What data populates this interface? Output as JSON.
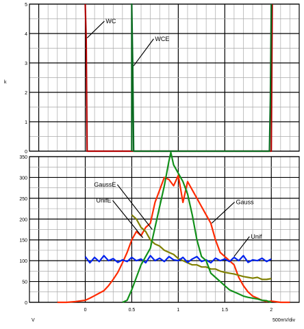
{
  "colors": {
    "Gauss": "#ff2a00",
    "GaussE": "#808000",
    "Unif": "#0022ee",
    "UnifE": "#12901a",
    "WC": "#b00000",
    "WCE": "#0a6a20",
    "grid_major": "#000000",
    "grid_minor": "#a8a8a8"
  },
  "chart_data": [
    {
      "type": "line",
      "title": "",
      "ylabel": "k",
      "xlim": [
        -0.6,
        2.3
      ],
      "ylim": [
        0,
        5
      ],
      "yticks": [
        "0",
        "1",
        "2",
        "3",
        "4",
        "5"
      ],
      "grid": true,
      "series": [
        {
          "name": "WC",
          "x": [
            0.0,
            0.01,
            0.02,
            0.03,
            2.0,
            2.01
          ],
          "values": [
            5.0,
            3.8,
            0.0,
            0.0,
            0.0,
            5.0
          ]
        },
        {
          "name": "WCE",
          "x": [
            0.5,
            0.5,
            0.51,
            0.52,
            1.98,
            1.99,
            2.0
          ],
          "values": [
            0.0,
            5.0,
            3.0,
            0.0,
            0.0,
            1.8,
            5.0
          ]
        }
      ],
      "annotations": [
        {
          "text": "WC",
          "series": "WC"
        },
        {
          "text": "WCE",
          "series": "WCE"
        }
      ]
    },
    {
      "type": "line",
      "title": "",
      "xlabel": "V",
      "scale_label": "500mV/div",
      "xlim": [
        -0.6,
        2.3
      ],
      "ylim": [
        0,
        350
      ],
      "xticks": [
        "0",
        "0.5",
        "1",
        "1.5",
        "2"
      ],
      "yticks": [
        "0",
        "50",
        "100",
        "150",
        "200",
        "250",
        "300",
        "350"
      ],
      "grid": true,
      "series": [
        {
          "name": "Gauss",
          "x": [
            -0.3,
            -0.2,
            -0.1,
            0.0,
            0.05,
            0.1,
            0.15,
            0.2,
            0.25,
            0.3,
            0.35,
            0.4,
            0.45,
            0.5,
            0.55,
            0.6,
            0.65,
            0.7,
            0.75,
            0.8,
            0.85,
            0.9,
            0.95,
            1.0,
            1.05,
            1.1,
            1.15,
            1.2,
            1.25,
            1.3,
            1.35,
            1.4,
            1.45,
            1.5,
            1.55,
            1.6,
            1.65,
            1.7,
            1.75,
            1.8,
            1.85,
            1.9,
            1.95,
            2.0,
            2.1,
            2.2
          ],
          "values": [
            0,
            0,
            2,
            5,
            10,
            16,
            22,
            28,
            40,
            55,
            72,
            95,
            120,
            150,
            170,
            160,
            180,
            190,
            240,
            270,
            300,
            295,
            280,
            305,
            240,
            290,
            270,
            250,
            230,
            210,
            190,
            150,
            120,
            110,
            100,
            90,
            60,
            40,
            25,
            15,
            10,
            5,
            2,
            3,
            0,
            0
          ]
        },
        {
          "name": "GaussE",
          "x": [
            0.5,
            0.55,
            0.6,
            0.65,
            0.7,
            0.75,
            0.8,
            0.85,
            0.9,
            0.95,
            1.0,
            1.05,
            1.1,
            1.15,
            1.2,
            1.25,
            1.3,
            1.35,
            1.4,
            1.45,
            1.5,
            1.55,
            1.6,
            1.65,
            1.7,
            1.75,
            1.8,
            1.85,
            1.9,
            1.95,
            2.0
          ],
          "values": [
            210,
            200,
            180,
            170,
            150,
            140,
            135,
            125,
            120,
            115,
            105,
            100,
            95,
            90,
            90,
            85,
            85,
            80,
            80,
            75,
            72,
            70,
            68,
            65,
            62,
            60,
            58,
            60,
            55,
            55,
            57
          ]
        },
        {
          "name": "Unif",
          "x": [
            0.0,
            0.05,
            0.1,
            0.15,
            0.2,
            0.25,
            0.3,
            0.35,
            0.4,
            0.45,
            0.5,
            0.55,
            0.6,
            0.65,
            0.7,
            0.75,
            0.8,
            0.85,
            0.9,
            0.95,
            1.0,
            1.05,
            1.1,
            1.15,
            1.2,
            1.25,
            1.3,
            1.35,
            1.4,
            1.45,
            1.5,
            1.55,
            1.6,
            1.65,
            1.7,
            1.75,
            1.8,
            1.85,
            1.9,
            1.95,
            2.0
          ],
          "values": [
            110,
            95,
            108,
            98,
            112,
            100,
            105,
            96,
            102,
            98,
            108,
            100,
            104,
            95,
            112,
            100,
            106,
            98,
            110,
            102,
            100,
            108,
            96,
            104,
            110,
            98,
            102,
            95,
            106,
            100,
            104,
            98,
            108,
            100,
            112,
            96,
            102,
            100,
            106,
            98,
            104
          ]
        },
        {
          "name": "UnifE",
          "x": [
            0.4,
            0.45,
            0.5,
            0.55,
            0.6,
            0.65,
            0.7,
            0.75,
            0.8,
            0.85,
            0.9,
            0.92,
            0.95,
            1.0,
            1.05,
            1.1,
            1.15,
            1.2,
            1.25,
            1.3,
            1.35,
            1.4,
            1.45,
            1.5,
            1.55,
            1.6,
            1.65,
            1.7,
            1.75,
            1.8,
            1.85,
            1.9,
            1.95,
            2.0
          ],
          "values": [
            0,
            5,
            30,
            60,
            90,
            110,
            130,
            180,
            230,
            280,
            340,
            360,
            330,
            310,
            290,
            260,
            210,
            150,
            110,
            100,
            70,
            60,
            50,
            40,
            30,
            25,
            20,
            15,
            12,
            10,
            8,
            5,
            4,
            0
          ]
        }
      ],
      "annotations": [
        {
          "text": "GaussE",
          "series": "GaussE"
        },
        {
          "text": "UnifE",
          "series": "UnifE"
        },
        {
          "text": "Gauss",
          "series": "Gauss"
        },
        {
          "text": "Unif",
          "series": "Unif"
        }
      ]
    }
  ]
}
